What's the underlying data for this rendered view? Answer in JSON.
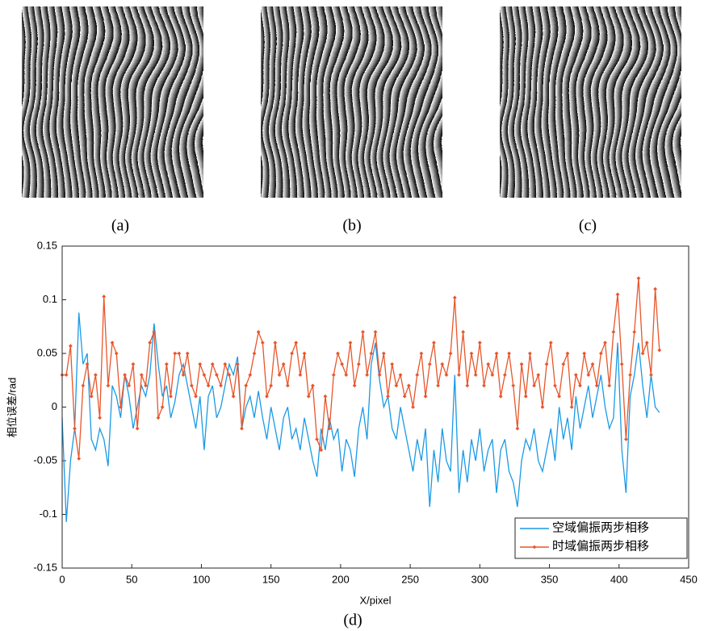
{
  "panel_labels": [
    "(a)",
    "(b)",
    "(c)"
  ],
  "chart_data": {
    "type": "line",
    "caption": "(d)",
    "xlabel": "X/pixel",
    "ylabel": "相位误差/rad",
    "xlim": [
      0,
      450
    ],
    "xticks": [
      0,
      50,
      100,
      150,
      200,
      250,
      300,
      350,
      400,
      450
    ],
    "ylim": [
      -0.15,
      0.15
    ],
    "yticks": [
      -0.15,
      -0.1,
      -0.05,
      0,
      0.05,
      0.1,
      0.15
    ],
    "legend": "lower right",
    "x": [
      0,
      3,
      6,
      9,
      12,
      15,
      18,
      21,
      24,
      27,
      30,
      33,
      36,
      39,
      42,
      45,
      48,
      51,
      54,
      57,
      60,
      63,
      66,
      69,
      72,
      75,
      78,
      81,
      84,
      87,
      90,
      93,
      96,
      99,
      102,
      105,
      108,
      111,
      114,
      117,
      120,
      123,
      126,
      129,
      132,
      135,
      138,
      141,
      144,
      147,
      150,
      153,
      156,
      159,
      162,
      165,
      168,
      171,
      174,
      177,
      180,
      183,
      186,
      189,
      192,
      195,
      198,
      201,
      204,
      207,
      210,
      213,
      216,
      219,
      222,
      225,
      228,
      231,
      234,
      237,
      240,
      243,
      246,
      249,
      252,
      255,
      258,
      261,
      264,
      267,
      270,
      273,
      276,
      279,
      282,
      285,
      288,
      291,
      294,
      297,
      300,
      303,
      306,
      309,
      312,
      315,
      318,
      321,
      324,
      327,
      330,
      333,
      336,
      339,
      342,
      345,
      348,
      351,
      354,
      357,
      360,
      363,
      366,
      369,
      372,
      375,
      378,
      381,
      384,
      387,
      390,
      393,
      396,
      399,
      402,
      405,
      408,
      411,
      414,
      417,
      420,
      423,
      426,
      429
    ],
    "series": [
      {
        "name": "空域偏振两步相移",
        "color": "#1a9ae6",
        "marker": false,
        "values": [
          -0.01,
          -0.107,
          -0.05,
          -0.02,
          0.088,
          0.04,
          0.05,
          -0.03,
          -0.04,
          -0.02,
          -0.03,
          -0.055,
          0.02,
          0.01,
          -0.01,
          0.03,
          0.01,
          -0.02,
          0.0,
          0.02,
          0.01,
          0.03,
          0.078,
          0.04,
          0.01,
          0.02,
          -0.01,
          0.005,
          0.03,
          0.04,
          0.02,
          0.0,
          -0.02,
          0.01,
          -0.04,
          0.01,
          0.02,
          -0.01,
          0.0,
          0.02,
          0.04,
          0.03,
          0.047,
          -0.02,
          0.0,
          0.01,
          -0.01,
          0.015,
          -0.01,
          -0.03,
          0.0,
          -0.02,
          -0.04,
          -0.01,
          0.0,
          -0.03,
          -0.02,
          -0.04,
          -0.01,
          -0.03,
          -0.05,
          -0.065,
          -0.02,
          -0.04,
          -0.01,
          -0.03,
          -0.02,
          -0.06,
          -0.03,
          -0.04,
          -0.065,
          -0.02,
          0.0,
          -0.03,
          0.04,
          0.06,
          0.025,
          0.0,
          0.01,
          -0.02,
          -0.03,
          0.0,
          -0.02,
          -0.04,
          -0.06,
          -0.03,
          -0.05,
          -0.02,
          -0.093,
          -0.04,
          -0.07,
          -0.02,
          -0.05,
          -0.06,
          0.03,
          -0.08,
          -0.04,
          -0.07,
          -0.03,
          -0.05,
          -0.02,
          -0.06,
          -0.04,
          -0.03,
          -0.08,
          -0.04,
          -0.03,
          -0.06,
          -0.07,
          -0.093,
          -0.05,
          -0.03,
          -0.04,
          -0.02,
          -0.05,
          -0.06,
          -0.04,
          -0.02,
          -0.05,
          0.0,
          -0.03,
          -0.01,
          -0.04,
          0.01,
          -0.02,
          0.0,
          0.02,
          -0.01,
          0.01,
          0.03,
          0.0,
          -0.02,
          -0.01,
          0.06,
          -0.04,
          -0.08,
          0.01,
          0.03,
          0.06,
          0.02,
          -0.01,
          0.03,
          0.0,
          -0.005
        ]
      },
      {
        "name": "时域偏振两步相移",
        "color": "#e8562a",
        "marker": true,
        "values": [
          0.03,
          0.03,
          0.057,
          -0.02,
          -0.048,
          0.02,
          0.04,
          0.01,
          0.03,
          -0.01,
          0.103,
          0.02,
          0.06,
          0.05,
          0.0,
          0.03,
          0.02,
          0.04,
          -0.02,
          0.03,
          0.02,
          0.06,
          0.07,
          -0.01,
          0.0,
          0.04,
          0.01,
          0.05,
          0.05,
          0.03,
          0.05,
          0.02,
          0.01,
          0.04,
          0.03,
          0.02,
          0.04,
          0.03,
          0.02,
          0.04,
          0.03,
          0.01,
          0.04,
          -0.02,
          0.02,
          0.03,
          0.05,
          0.07,
          0.06,
          0.01,
          0.02,
          0.06,
          0.03,
          0.04,
          0.02,
          0.05,
          0.06,
          0.03,
          0.05,
          0.01,
          0.02,
          -0.03,
          -0.04,
          0.01,
          -0.02,
          0.03,
          0.05,
          0.04,
          0.03,
          0.06,
          0.02,
          0.04,
          0.07,
          0.03,
          0.05,
          0.07,
          0.03,
          0.05,
          0.01,
          0.04,
          0.02,
          0.03,
          0.01,
          0.02,
          0.0,
          0.03,
          0.05,
          0.01,
          0.04,
          0.06,
          0.02,
          0.04,
          0.03,
          0.05,
          0.102,
          0.03,
          0.07,
          0.02,
          0.05,
          0.03,
          0.06,
          0.02,
          0.04,
          0.03,
          0.05,
          0.01,
          0.03,
          0.05,
          0.02,
          -0.02,
          0.04,
          0.01,
          0.05,
          0.02,
          0.03,
          0.0,
          0.04,
          0.06,
          0.02,
          0.01,
          0.04,
          0.05,
          0.0,
          0.03,
          0.02,
          0.05,
          0.03,
          0.04,
          0.02,
          0.05,
          0.06,
          0.02,
          0.07,
          0.105,
          0.04,
          -0.03,
          0.03,
          0.07,
          0.12,
          0.05,
          0.06,
          0.03,
          0.11,
          0.053
        ]
      }
    ]
  }
}
